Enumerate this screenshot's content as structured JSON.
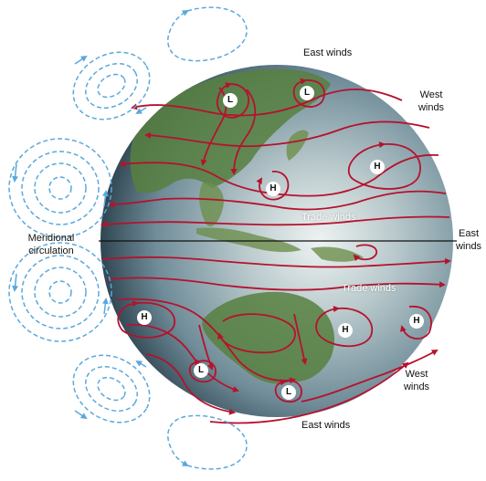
{
  "labels": {
    "east_winds_top": "East winds",
    "west_winds_top_1": "West",
    "west_winds_top_2": "winds",
    "trade_winds_north": "Trade winds",
    "east_winds_equator_1": "East",
    "east_winds_equator_2": "winds",
    "meridional_1": "Meridional",
    "meridional_2": "circulation",
    "trade_winds_south": "Trade winds",
    "west_winds_bottom_1": "West",
    "west_winds_bottom_2": "winds",
    "east_winds_bottom": "East winds"
  },
  "pressure_systems": [
    {
      "id": "north-low-1",
      "label": "L"
    },
    {
      "id": "north-low-2",
      "label": "L"
    },
    {
      "id": "north-high-1",
      "label": "H"
    },
    {
      "id": "north-high-2",
      "label": "H"
    },
    {
      "id": "south-high-1",
      "label": "H"
    },
    {
      "id": "south-high-2",
      "label": "H"
    },
    {
      "id": "south-high-3",
      "label": "H"
    },
    {
      "id": "south-low-1",
      "label": "L"
    },
    {
      "id": "south-low-2",
      "label": "L"
    }
  ],
  "colors": {
    "wind_streamline": "#b5122e",
    "meridional_arrow": "#5aa8dc",
    "equator_line": "#111111",
    "ocean": "#7f9aa4",
    "land": "#57803f"
  }
}
